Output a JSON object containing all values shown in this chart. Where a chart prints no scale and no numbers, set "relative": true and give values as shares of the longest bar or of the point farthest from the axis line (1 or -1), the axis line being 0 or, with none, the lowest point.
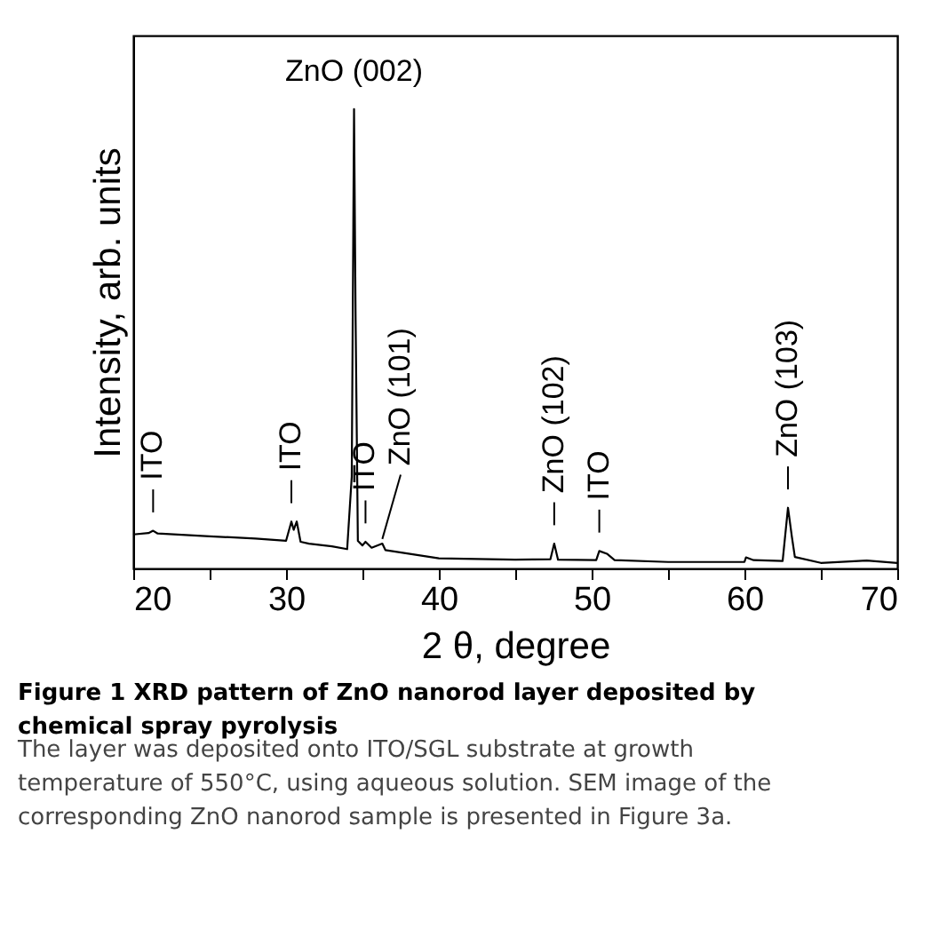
{
  "chart_data": {
    "type": "line",
    "relative": true,
    "title": "Figure 1 XRD pattern of ZnO nanorod layer deposited by chemical spray pyrolysis",
    "xlabel": "2 θ, degree",
    "ylabel": "Intensity, arb. units",
    "xlim": [
      20,
      70
    ],
    "xticks": [
      20,
      {
        "value": 25,
        "label": null
      },
      30,
      {
        "value": 35,
        "label": null
      },
      40,
      {
        "value": 45,
        "label": null
      },
      50,
      {
        "value": 55,
        "label": null
      },
      60,
      {
        "value": 65,
        "label": null
      },
      70
    ],
    "series": [
      {
        "color": "#000000",
        "x": [
          20,
          21,
          21.3,
          21.6,
          25,
          28,
          30,
          30.2,
          30.35,
          30.5,
          30.7,
          30.95,
          31.5,
          33,
          34,
          34.3,
          34.45,
          34.55,
          34.7,
          35,
          35.2,
          35.6,
          36.3,
          36.5,
          40,
          45,
          47.3,
          47.55,
          47.8,
          50.3,
          50.5,
          51,
          51.5,
          55,
          60,
          60.1,
          60.6,
          62.5,
          62.85,
          63.1,
          63.3,
          65,
          68,
          70
        ],
        "values": [
          0.074,
          0.077,
          0.082,
          0.076,
          0.07,
          0.065,
          0.06,
          0.084,
          0.102,
          0.084,
          0.102,
          0.058,
          0.054,
          0.048,
          0.042,
          0.2,
          1.0,
          0.55,
          0.06,
          0.05,
          0.058,
          0.045,
          0.054,
          0.04,
          0.022,
          0.019,
          0.02,
          0.054,
          0.019,
          0.018,
          0.038,
          0.032,
          0.018,
          0.014,
          0.014,
          0.024,
          0.018,
          0.016,
          0.132,
          0.07,
          0.025,
          0.012,
          0.017,
          0.012
        ]
      }
    ],
    "annotations": [
      {
        "text": "ZnO (002)",
        "x": 34.45,
        "y": 1.0
      },
      {
        "text": "ITO",
        "x": 21.3,
        "y": 0.082
      },
      {
        "text": "ITO",
        "x": 30.35,
        "y": 0.102
      },
      {
        "text": "ITO",
        "x": 35.2,
        "y": 0.058
      },
      {
        "text": "ZnO (101)",
        "x": 36.3,
        "y": 0.054
      },
      {
        "text": "ZnO (102)",
        "x": 47.55,
        "y": 0.054
      },
      {
        "text": "ITO",
        "x": 50.5,
        "y": 0.038
      },
      {
        "text": "ZnO (103)",
        "x": 62.85,
        "y": 0.132
      },
      "The layer was deposited onto ITO/SGL substrate at growth temperature of 550°C, using aqueous solution. SEM image of the corresponding ZnO nanorod sample is presented in Figure 3a."
    ]
  }
}
